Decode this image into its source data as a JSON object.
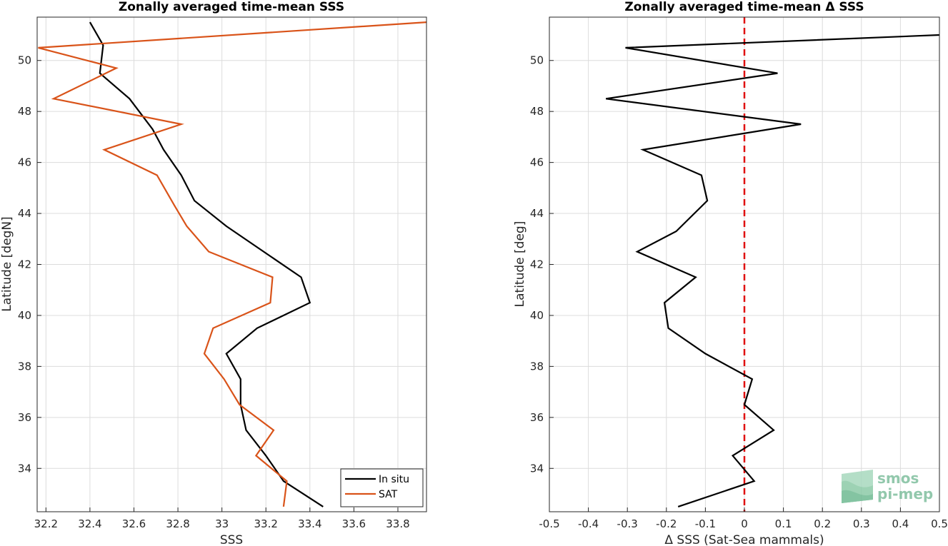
{
  "chart_data": [
    {
      "type": "line",
      "title": "Zonally averaged time-mean SSS",
      "xlabel": "SSS",
      "ylabel": "Latitude [degN]",
      "xlim": [
        32.16,
        33.93
      ],
      "ylim": [
        32.3,
        51.7
      ],
      "xticks": [
        "32.2",
        "32.4",
        "32.6",
        "32.8",
        "33",
        "33.2",
        "33.4",
        "33.6",
        "33.8"
      ],
      "yticks": [
        "34",
        "36",
        "38",
        "40",
        "42",
        "44",
        "46",
        "48",
        "50"
      ],
      "grid": true,
      "legend_position": "bottom-right",
      "series": [
        {
          "name": "In situ",
          "color": "#000000",
          "points": [
            [
              32.4,
              51.5
            ],
            [
              32.46,
              50.6
            ],
            [
              32.445,
              49.5
            ],
            [
              32.58,
              48.5
            ],
            [
              32.685,
              47.3
            ],
            [
              32.735,
              46.5
            ],
            [
              32.815,
              45.5
            ],
            [
              32.875,
              44.5
            ],
            [
              33.02,
              43.5
            ],
            [
              33.36,
              41.5
            ],
            [
              33.4,
              40.5
            ],
            [
              33.16,
              39.5
            ],
            [
              33.02,
              38.5
            ],
            [
              33.085,
              37.5
            ],
            [
              33.085,
              36.5
            ],
            [
              33.11,
              35.5
            ],
            [
              33.2,
              34.5
            ],
            [
              33.28,
              33.5
            ],
            [
              33.46,
              32.5
            ]
          ]
        },
        {
          "name": "SAT",
          "color": "#D95319",
          "points": [
            [
              33.93,
              51.5
            ],
            [
              32.165,
              50.5
            ],
            [
              32.52,
              49.7
            ],
            [
              32.235,
              48.5
            ],
            [
              32.815,
              47.5
            ],
            [
              32.465,
              46.5
            ],
            [
              32.705,
              45.5
            ],
            [
              32.785,
              44.3
            ],
            [
              32.84,
              43.5
            ],
            [
              32.94,
              42.5
            ],
            [
              33.23,
              41.5
            ],
            [
              33.22,
              40.5
            ],
            [
              32.96,
              39.5
            ],
            [
              32.92,
              38.5
            ],
            [
              33.01,
              37.5
            ],
            [
              33.08,
              36.5
            ],
            [
              33.235,
              35.5
            ],
            [
              33.155,
              34.5
            ],
            [
              33.295,
              33.5
            ],
            [
              33.28,
              32.5
            ]
          ]
        }
      ]
    },
    {
      "type": "line",
      "title": "Zonally averaged time-mean Δ SSS",
      "xlabel": "Δ SSS (Sat-Sea mammals)",
      "ylabel": "Latitude [deg]",
      "xlim": [
        -0.5,
        0.5
      ],
      "ylim": [
        32.3,
        51.7
      ],
      "xticks": [
        "-0.5",
        "-0.4",
        "-0.3",
        "-0.2",
        "-0.1",
        "0",
        "0.1",
        "0.2",
        "0.3",
        "0.4",
        "0.5"
      ],
      "yticks": [
        "34",
        "36",
        "38",
        "40",
        "42",
        "44",
        "46",
        "48",
        "50"
      ],
      "grid": true,
      "reference_line": {
        "x": 0,
        "color": "#E01010",
        "style": "dashed"
      },
      "series": [
        {
          "name": "",
          "color": "#000000",
          "points": [
            [
              0.5,
              51.0
            ],
            [
              -0.305,
              50.5
            ],
            [
              0.085,
              49.5
            ],
            [
              -0.355,
              48.5
            ],
            [
              0.145,
              47.5
            ],
            [
              -0.26,
              46.5
            ],
            [
              -0.11,
              45.5
            ],
            [
              -0.095,
              44.5
            ],
            [
              -0.175,
              43.3
            ],
            [
              -0.275,
              42.5
            ],
            [
              -0.125,
              41.5
            ],
            [
              -0.205,
              40.5
            ],
            [
              -0.195,
              39.5
            ],
            [
              -0.1,
              38.5
            ],
            [
              0.02,
              37.5
            ],
            [
              0.0,
              36.5
            ],
            [
              0.075,
              35.5
            ],
            [
              -0.03,
              34.5
            ],
            [
              0.025,
              33.5
            ],
            [
              -0.17,
              32.5
            ]
          ]
        }
      ]
    }
  ],
  "watermark": {
    "line1": "smos",
    "line2": "pi-mep",
    "color": "#7FBF9E"
  }
}
